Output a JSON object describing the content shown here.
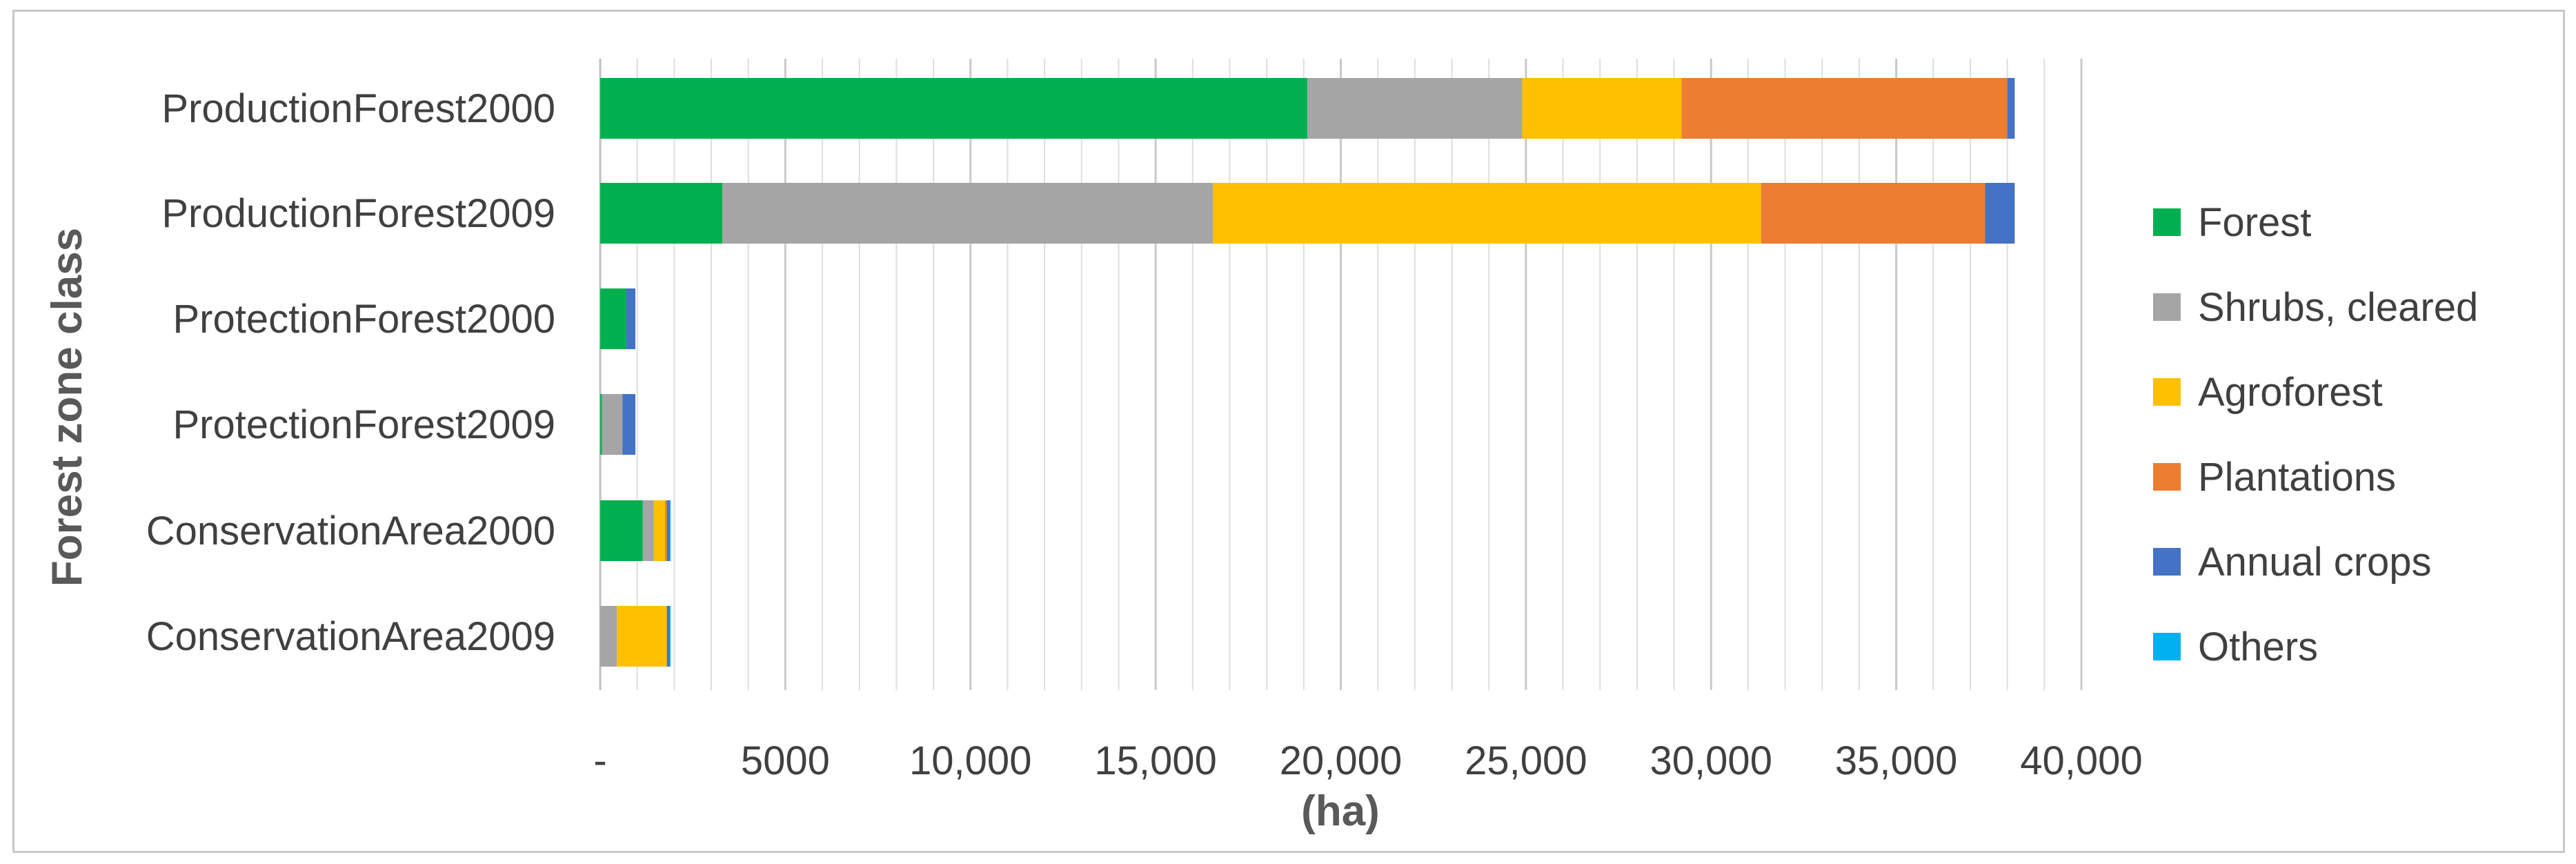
{
  "chart_data": {
    "type": "bar",
    "orientation": "horizontal",
    "stacked": true,
    "title": "",
    "xlabel": "(ha)",
    "ylabel": "Forest zone class",
    "xlim": [
      0,
      40000
    ],
    "x_ticks": [
      0,
      5000,
      10000,
      15000,
      20000,
      25000,
      30000,
      35000,
      40000
    ],
    "x_tick_labels": [
      "-",
      "5000",
      "10,000",
      "15,000",
      "20,000",
      "25,000",
      "30,000",
      "35,000",
      "40,000"
    ],
    "grid": true,
    "legend_position": "right",
    "categories": [
      "ProductionForest2000",
      "ProductionForest2009",
      "ProtectionForest2000",
      "ProtectionForest2009",
      "ConservationArea2000",
      "ConservationArea2009"
    ],
    "series": [
      {
        "name": "Forest",
        "color": "#00b050",
        "values": [
          19100,
          3300,
          700,
          50,
          1150,
          0
        ]
      },
      {
        "name": "Shrubs, cleared",
        "color": "#a5a5a5",
        "values": [
          5800,
          13250,
          0,
          550,
          300,
          450
        ]
      },
      {
        "name": "Agroforest",
        "color": "#ffc000",
        "values": [
          4300,
          14800,
          0,
          0,
          300,
          1350
        ]
      },
      {
        "name": "Plantations",
        "color": "#ed7d31",
        "values": [
          8800,
          6050,
          0,
          0,
          50,
          0
        ]
      },
      {
        "name": "Annual crops",
        "color": "#4472c4",
        "values": [
          200,
          800,
          250,
          350,
          80,
          80
        ]
      },
      {
        "name": "Others",
        "color": "#00b0f0",
        "values": [
          0,
          0,
          0,
          0,
          20,
          20
        ]
      }
    ]
  }
}
